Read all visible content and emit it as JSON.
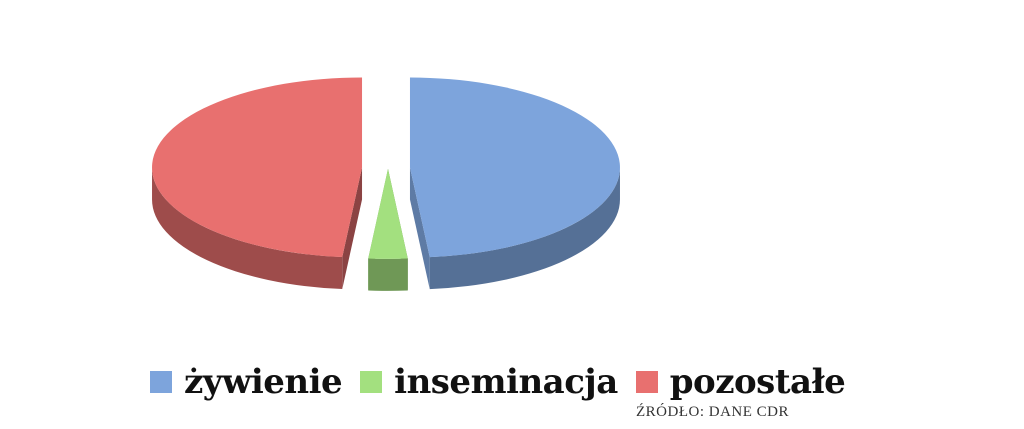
{
  "chart_data": {
    "type": "pie",
    "categories": [
      "żywienie",
      "inseminacja",
      "pozostałe"
    ],
    "values": [
      48.5,
      3,
      48.5
    ],
    "colors": [
      "#7da4dc",
      "#a3e07f",
      "#e8706f"
    ],
    "style": "3d-exploded",
    "legend_position": "bottom"
  },
  "legend": {
    "items": [
      {
        "label": "żywienie",
        "color": "#7da4dc"
      },
      {
        "label": "inseminacja",
        "color": "#a3e07f"
      },
      {
        "label": "pozostałe",
        "color": "#e8706f"
      }
    ]
  },
  "source": "ŹRÓDŁO: DANE CDR"
}
